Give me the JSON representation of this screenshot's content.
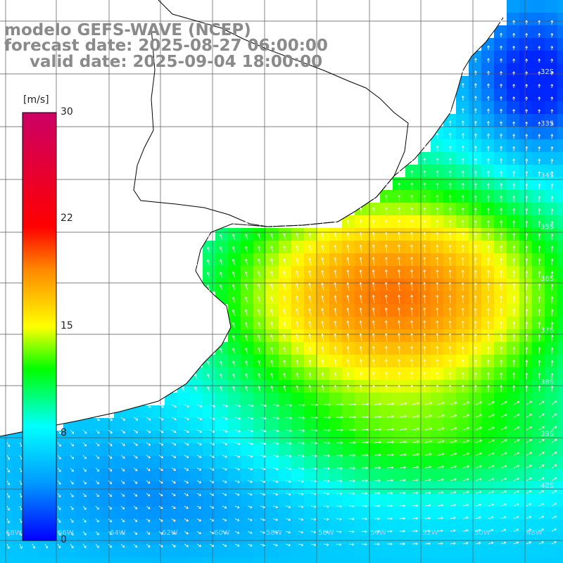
{
  "header": {
    "model": "modelo GEFS-WAVE (NCEP)",
    "forecast": "forecast date: 2025-08-27 06:00:00",
    "valid": "valid date: 2025-09-04 18:00:00"
  },
  "colorbar": {
    "unit": "[m/s]",
    "ticks": [
      "30",
      "22",
      "15",
      "8",
      "0"
    ],
    "min": 0,
    "max": 30,
    "colors": [
      "#0000ff",
      "#0099ff",
      "#00ffff",
      "#00ff00",
      "#ffff00",
      "#ff8800",
      "#ff0000",
      "#cc0066"
    ]
  },
  "map": {
    "grid_labels": [
      "32S",
      "33S",
      "34S",
      "35S",
      "36S",
      "37S",
      "38S",
      "39S",
      "40S"
    ],
    "grid_labels_bottom": [
      "68W",
      "66W",
      "64W",
      "62W",
      "60W",
      "58W",
      "56W",
      "54W",
      "52W",
      "50W",
      "48W"
    ],
    "land_color": "#ffffff",
    "grid_color": "#555555",
    "coast_color": "#000000"
  }
}
